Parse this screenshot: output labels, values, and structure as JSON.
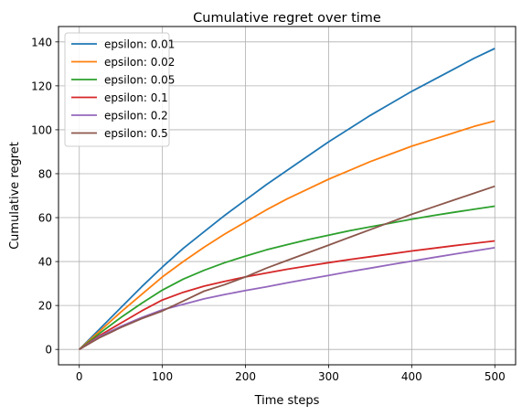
{
  "chart_data": {
    "type": "line",
    "title": "Cumulative regret over time",
    "xlabel": "Time steps",
    "ylabel": "Cumulative regret",
    "xlim": [
      -25,
      525
    ],
    "ylim": [
      -7,
      147
    ],
    "xticks": [
      0,
      100,
      200,
      300,
      400,
      500
    ],
    "yticks": [
      0,
      20,
      40,
      60,
      80,
      100,
      120,
      140
    ],
    "grid": true,
    "legend_position": "top-left",
    "x": [
      0,
      25,
      50,
      75,
      100,
      125,
      150,
      175,
      200,
      225,
      250,
      275,
      300,
      325,
      350,
      375,
      400,
      425,
      450,
      475,
      500
    ],
    "series": [
      {
        "name": "epsilon: 0.01",
        "color": "#1f77b4",
        "values": [
          0,
          9.5,
          19,
          28.5,
          37.5,
          46,
          53.5,
          61,
          68,
          75,
          81.5,
          88,
          94.5,
          100.5,
          106.5,
          112,
          117.5,
          122.5,
          127.5,
          132.5,
          137
        ]
      },
      {
        "name": "epsilon: 0.02",
        "color": "#ff7f0e",
        "values": [
          0,
          8.5,
          17,
          25,
          33,
          40,
          46.5,
          52.5,
          58,
          63.5,
          68.5,
          73,
          77.5,
          81.5,
          85.5,
          89,
          92.5,
          95.5,
          98.5,
          101.5,
          104
        ]
      },
      {
        "name": "epsilon: 0.05",
        "color": "#2ca02c",
        "values": [
          0,
          7.5,
          14.5,
          21,
          27,
          32,
          36,
          39.5,
          42.5,
          45.3,
          47.7,
          50,
          52,
          54,
          55.8,
          57.5,
          59.3,
          60.9,
          62.4,
          63.8,
          65.2
        ]
      },
      {
        "name": "epsilon: 0.1",
        "color": "#d62728",
        "values": [
          0,
          6.5,
          12,
          17.5,
          22.5,
          26,
          28.8,
          31,
          33,
          34.8,
          36.5,
          38,
          39.5,
          40.9,
          42.2,
          43.5,
          44.8,
          46,
          47.2,
          48.3,
          49.4
        ]
      },
      {
        "name": "epsilon: 0.2",
        "color": "#9467bd",
        "values": [
          0,
          6,
          10.5,
          14.5,
          18,
          20.5,
          23,
          25,
          26.8,
          28.5,
          30.3,
          32,
          33.7,
          35.4,
          37,
          38.6,
          40.2,
          41.8,
          43.3,
          44.8,
          46.3
        ]
      },
      {
        "name": "epsilon: 0.5",
        "color": "#8c564b",
        "values": [
          0,
          5.5,
          10,
          14,
          17.5,
          22,
          26.5,
          29.5,
          33,
          37,
          40.5,
          44,
          47.5,
          51,
          54.5,
          58,
          61.5,
          64.7,
          67.9,
          71.1,
          74.3
        ]
      }
    ]
  }
}
